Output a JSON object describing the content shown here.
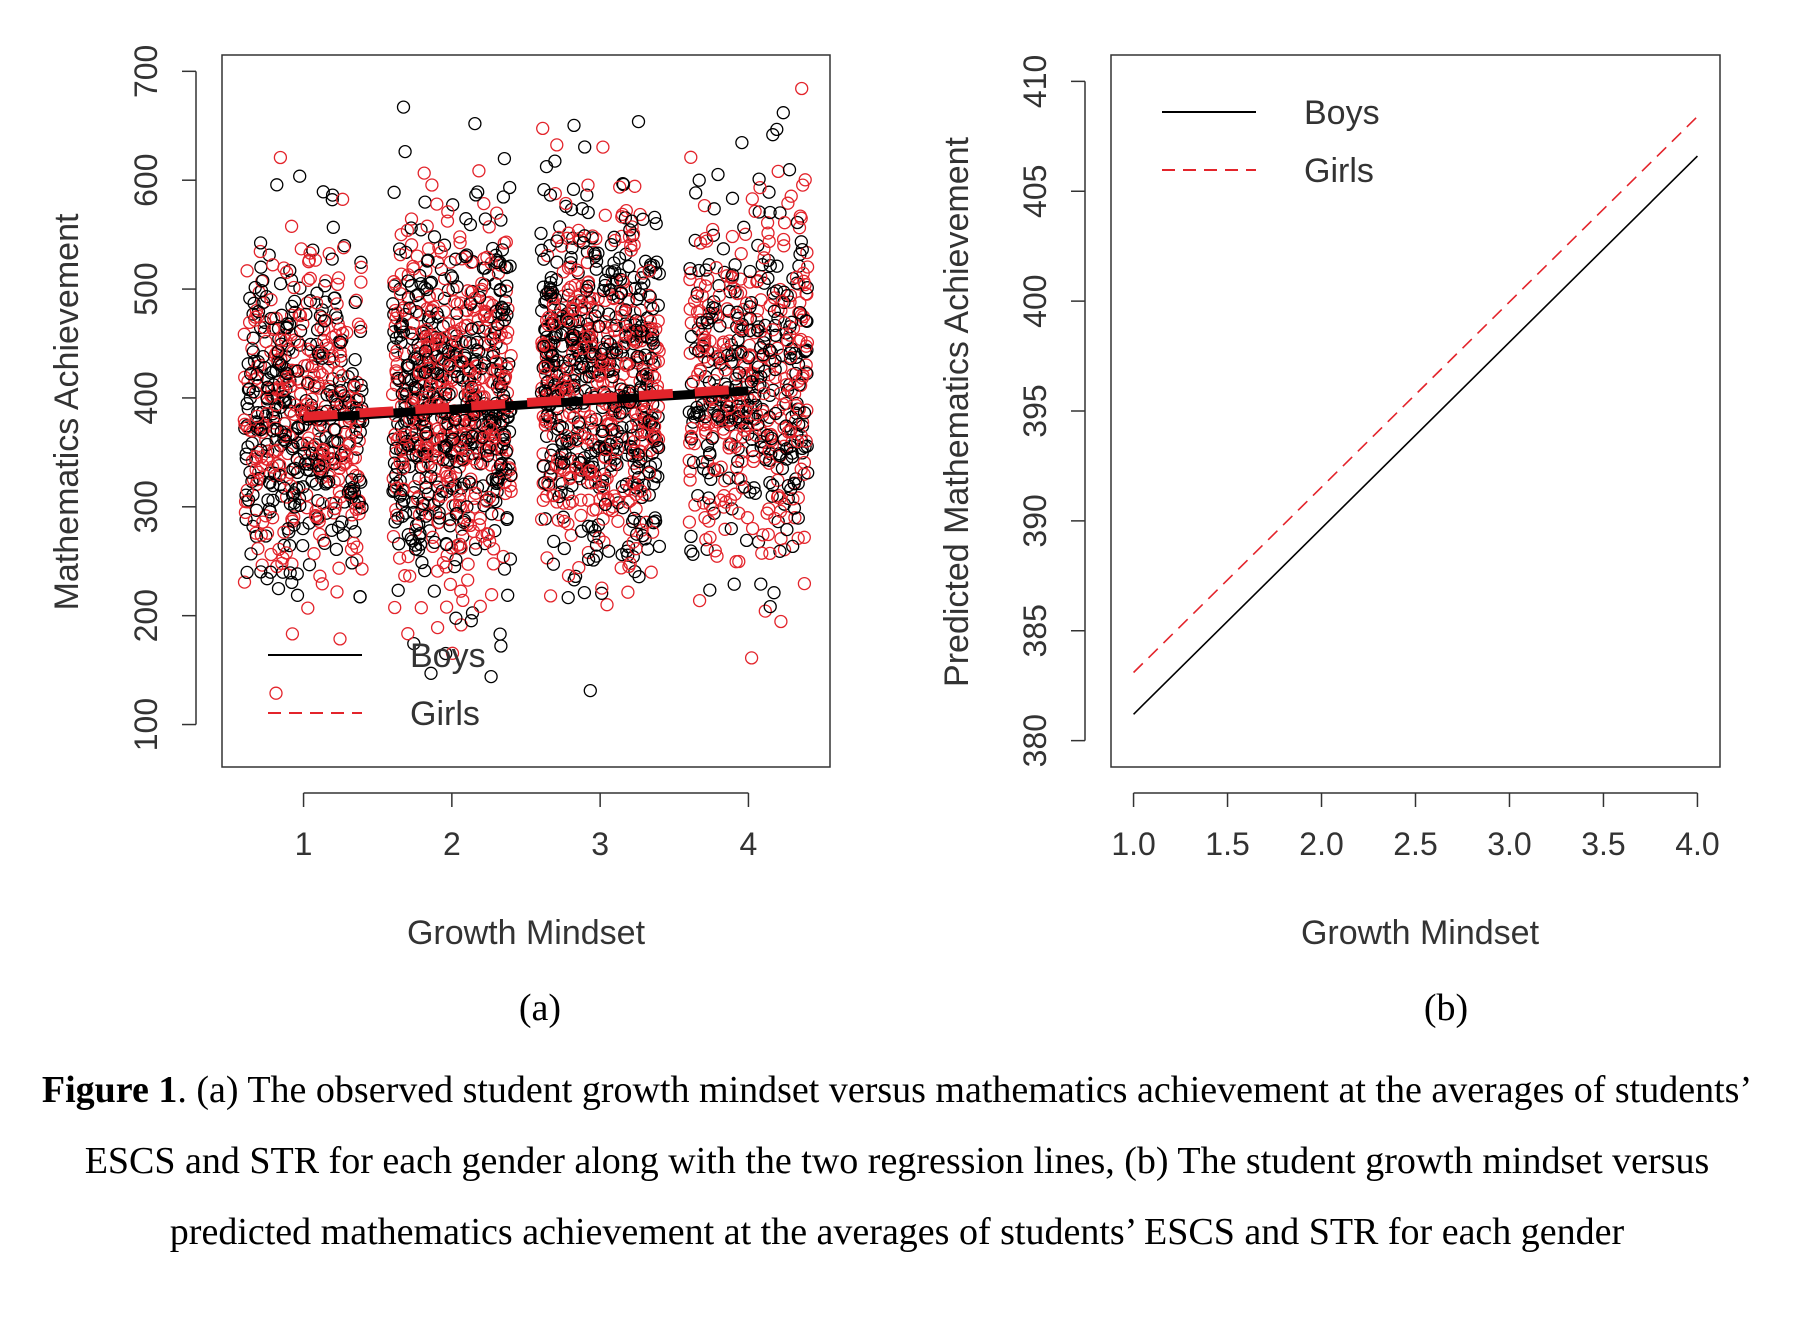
{
  "figure": {
    "caption_label": "Figure 1",
    "caption_text": ". (a) The observed student growth mindset versus mathematics achievement at the averages of students’ ESCS and STR for each gender along with the two regression lines, (b) The student growth mindset versus predicted mathematics achievement at the averages of students’ ESCS and STR for each gender",
    "colors": {
      "boys": "#000000",
      "girls": "#e3242b",
      "axis": "#333333"
    }
  },
  "chart_data": [
    {
      "type": "scatter",
      "panel_label": "(a)",
      "xlabel": "Growth Mindset",
      "ylabel": "Mathematics Achievement",
      "xlim": [
        0.45,
        4.55
      ],
      "ylim": [
        61,
        715
      ],
      "x_ticks": [
        "1",
        "2",
        "3",
        "4"
      ],
      "y_ticks": [
        "100",
        "200",
        "300",
        "400",
        "500",
        "600",
        "700"
      ],
      "legend": {
        "position": "bottom-left",
        "entries": [
          "Boys",
          "Girls"
        ]
      },
      "scatter_groups": [
        {
          "x": 1,
          "count": 650,
          "y_mean": 385,
          "y_sd": 78,
          "jitter": 0.4
        },
        {
          "x": 2,
          "count": 900,
          "y_mean": 395,
          "y_sd": 82,
          "jitter": 0.4
        },
        {
          "x": 3,
          "count": 850,
          "y_mean": 410,
          "y_sd": 86,
          "jitter": 0.4
        },
        {
          "x": 4,
          "count": 600,
          "y_mean": 420,
          "y_sd": 88,
          "jitter": 0.4
        }
      ],
      "series": [
        {
          "name": "Boys",
          "style": "solid",
          "x": [
            1,
            4
          ],
          "y": [
            381,
            406.5
          ]
        },
        {
          "name": "Girls",
          "style": "dashed",
          "x": [
            1,
            4
          ],
          "y": [
            383,
            408.5
          ]
        }
      ]
    },
    {
      "type": "line",
      "panel_label": "(b)",
      "xlabel": "Growth Mindset",
      "ylabel": "Predicted Mathematics Achievement",
      "xlim": [
        0.88,
        4.12
      ],
      "ylim": [
        378.8,
        411.2
      ],
      "x_ticks": [
        "1.0",
        "1.5",
        "2.0",
        "2.5",
        "3.0",
        "3.5",
        "4.0"
      ],
      "y_ticks": [
        "380",
        "385",
        "390",
        "395",
        "400",
        "405",
        "410"
      ],
      "legend": {
        "position": "top-left",
        "entries": [
          "Boys",
          "Girls"
        ]
      },
      "series": [
        {
          "name": "Boys",
          "style": "solid",
          "x": [
            1.0,
            4.0
          ],
          "y": [
            381.2,
            406.6
          ]
        },
        {
          "name": "Girls",
          "style": "dashed",
          "x": [
            1.0,
            4.0
          ],
          "y": [
            383.1,
            408.4
          ]
        }
      ]
    }
  ]
}
